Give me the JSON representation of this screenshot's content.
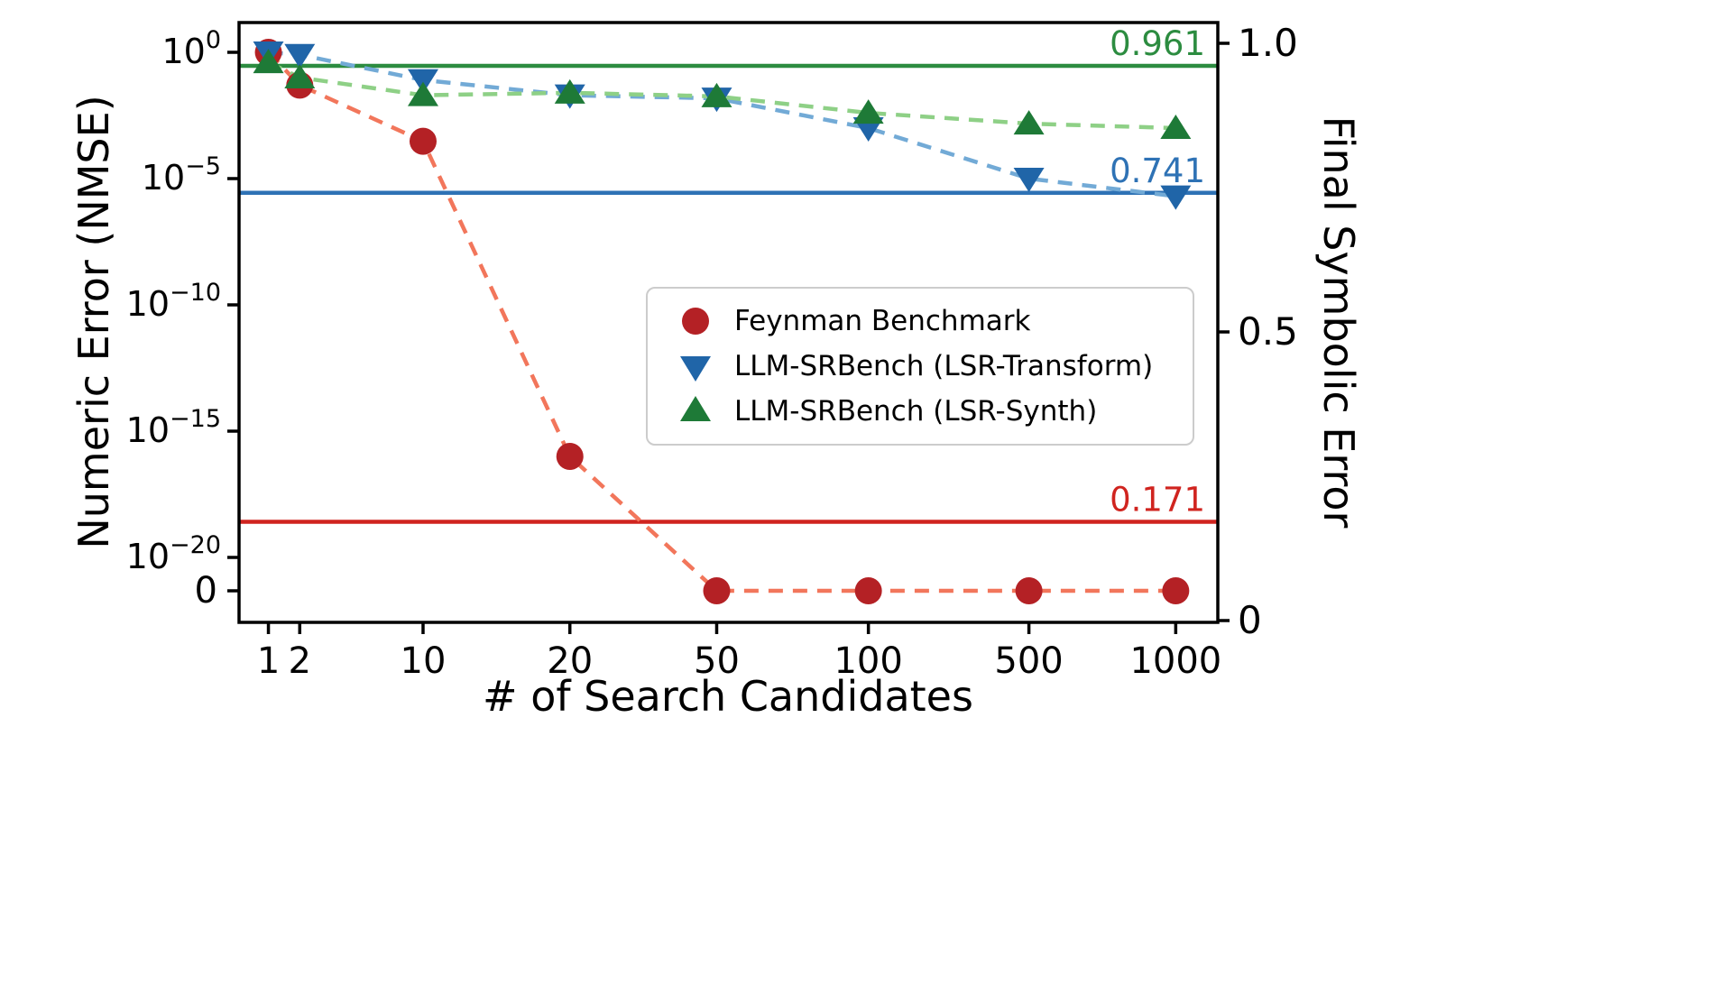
{
  "figure": {
    "background": "#ffffff"
  },
  "chart_data": {
    "type": "line",
    "title": "",
    "xlabel": "# of Search Candidates",
    "ylabel_left": "Numeric Error (NMSE)",
    "ylabel_right": "Final Symbolic Error",
    "x_categories": [
      1,
      2,
      10,
      20,
      50,
      100,
      500,
      1000
    ],
    "x_tick_labels": [
      "1",
      "2",
      "10",
      "20",
      "50",
      "100",
      "500",
      "1000"
    ],
    "left_axis": {
      "scale": "symlog",
      "tick_exponents": [
        0,
        -5,
        -10,
        -15,
        -20
      ],
      "zero_tick_label": "0"
    },
    "right_axis": {
      "range": [
        0,
        1.0
      ],
      "ticks": [
        1.0,
        0.5,
        0
      ],
      "tick_labels": [
        "1.0",
        "0.5",
        "0"
      ]
    },
    "grid": false,
    "legend_position": "center-right-inside",
    "series": [
      {
        "name": "Feynman Benchmark",
        "marker": "circle",
        "marker_color": "#b42125",
        "line_color": "#f2765b",
        "hline_color": "#d0241f",
        "nmse": [
          1.0,
          0.05,
          0.0003,
          1e-16,
          0,
          0,
          0,
          0
        ],
        "final_symbolic_error": 0.171,
        "final_symbolic_error_label": "0.171"
      },
      {
        "name": "LLM-SRBench (LSR-Transform)",
        "marker": "triangle-down",
        "marker_color": "#2065a8",
        "line_color": "#72aad6",
        "hline_color": "#2e72b5",
        "nmse": [
          1.0,
          0.8,
          0.08,
          0.02,
          0.015,
          0.001,
          1e-05,
          2e-06
        ],
        "final_symbolic_error": 0.741,
        "final_symbolic_error_label": "0.741"
      },
      {
        "name": "LLM-SRBench (LSR-Synth)",
        "marker": "triangle-up",
        "marker_color": "#1e7a37",
        "line_color": "#8ed086",
        "hline_color": "#2c8c40",
        "nmse": [
          0.4,
          0.1,
          0.02,
          0.025,
          0.018,
          0.004,
          0.0015,
          0.001
        ],
        "final_symbolic_error": 0.961,
        "final_symbolic_error_label": "0.961"
      }
    ]
  }
}
